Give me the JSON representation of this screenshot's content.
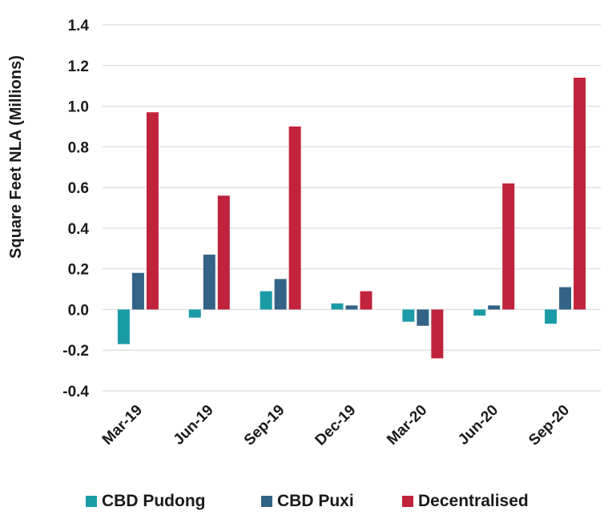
{
  "chart_data": {
    "type": "bar",
    "ylabel": "Square Feet NLA (Millions)",
    "xlabel": "",
    "ylim": [
      -0.4,
      1.4
    ],
    "yticks": [
      "1.4",
      "1.2",
      "1.0",
      "0.8",
      "0.6",
      "0.4",
      "0.2",
      "0.0",
      "-0.2",
      "-0.4"
    ],
    "categories": [
      "Mar-19",
      "Jun-19",
      "Sep-19",
      "Dec-19",
      "Mar-20",
      "Jun-20",
      "Sep-20"
    ],
    "grid": true,
    "legend_position": "bottom",
    "series": [
      {
        "name": "CBD Pudong",
        "color": "#1b9ba6",
        "values": [
          -0.17,
          -0.04,
          0.09,
          0.03,
          -0.06,
          -0.03,
          -0.07
        ]
      },
      {
        "name": "CBD Puxi",
        "color": "#336386",
        "values": [
          0.18,
          0.27,
          0.15,
          0.02,
          -0.08,
          0.02,
          0.11
        ]
      },
      {
        "name": "Decentralised",
        "color": "#c0233b",
        "values": [
          0.97,
          0.56,
          0.9,
          0.09,
          -0.24,
          0.62,
          1.14
        ]
      }
    ]
  }
}
